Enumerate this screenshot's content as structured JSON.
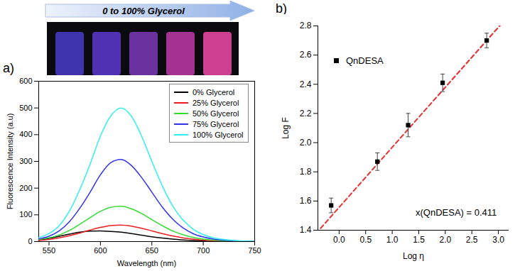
{
  "header": {
    "arrow_text": "0 to 100% Glycerol"
  },
  "chart_data": [
    {
      "type": "line",
      "panel": "a)",
      "x_label": "Wavelength (nm)",
      "y_label": "Fluorescence Intensity (a.u)",
      "x": [
        540,
        550,
        560,
        570,
        580,
        590,
        600,
        610,
        620,
        630,
        640,
        650,
        660,
        670,
        680,
        690,
        700,
        710,
        720,
        730,
        740,
        750
      ],
      "series": [
        {
          "name": "0% Glycerol",
          "color": "#000000",
          "line_style": "solid",
          "values": [
            5,
            12,
            20,
            28,
            35,
            39,
            40,
            38,
            35,
            30,
            24,
            18,
            13,
            9,
            6,
            4,
            2,
            1,
            1,
            0,
            0,
            0
          ]
        },
        {
          "name": "25% Glycerol",
          "color": "#ee1c1c",
          "line_style": "solid",
          "values": [
            4,
            8,
            14,
            22,
            32,
            43,
            53,
            60,
            62,
            58,
            50,
            40,
            30,
            21,
            14,
            9,
            5,
            3,
            2,
            1,
            0,
            0
          ]
        },
        {
          "name": "50% Glycerol",
          "color": "#33dd33",
          "line_style": "solid",
          "values": [
            8,
            14,
            25,
            42,
            65,
            90,
            113,
            128,
            132,
            123,
            105,
            82,
            60,
            40,
            26,
            16,
            9,
            5,
            3,
            2,
            1,
            0
          ]
        },
        {
          "name": "75% Glycerol",
          "color": "#3333ee",
          "line_style": "solid",
          "values": [
            10,
            20,
            40,
            75,
            125,
            185,
            250,
            295,
            307,
            285,
            240,
            185,
            130,
            85,
            52,
            30,
            17,
            9,
            5,
            3,
            2,
            1
          ]
        },
        {
          "name": "100% Glycerol",
          "color": "#33eeee",
          "line_style": "solid",
          "values": [
            15,
            30,
            60,
            115,
            195,
            290,
            395,
            470,
            500,
            470,
            395,
            300,
            210,
            135,
            82,
            47,
            26,
            14,
            8,
            4,
            2,
            1
          ]
        }
      ],
      "xlim": [
        540,
        750
      ],
      "xticks": [
        550,
        600,
        650,
        700,
        750
      ],
      "ylim": [
        0,
        600
      ],
      "yticks": [
        0,
        100,
        200,
        300,
        400,
        500,
        600
      ],
      "legend": "upper right",
      "grid": false
    },
    {
      "type": "scatter",
      "panel": "b)",
      "x_label": "Log η",
      "y_label": "Log F",
      "series": [
        {
          "name": "QnDESA",
          "color": "#000000",
          "marker": "square",
          "x": [
            -0.15,
            0.72,
            1.3,
            1.95,
            2.78
          ],
          "values": [
            1.57,
            1.87,
            2.12,
            2.41,
            2.7
          ],
          "error": [
            0.05,
            0.06,
            0.08,
            0.06,
            0.05
          ]
        }
      ],
      "fit_line": {
        "x": [
          -0.35,
          3.05
        ],
        "values": [
          1.413,
          2.811
        ],
        "color": "#e03030",
        "line_style": "dashed"
      },
      "annotation": "x(QnDESA) = 0.411",
      "xlim": [
        -0.4,
        3.2
      ],
      "xticks": [
        {
          "value": 0,
          "label": "0.0"
        },
        {
          "value": 0.5,
          "label": "0.5"
        },
        {
          "value": 1,
          "label": "1.0"
        },
        {
          "value": 1.5,
          "label": "1.5"
        },
        {
          "value": 2,
          "label": "2.0"
        },
        {
          "value": 2.5,
          "label": "2.5"
        },
        {
          "value": 3,
          "label": "3.0"
        }
      ],
      "ylim": [
        1.4,
        2.8
      ],
      "yticks": [
        1.4,
        1.6,
        1.8,
        {
          "value": 2,
          "label": "2.0"
        },
        2.2,
        2.4,
        2.6,
        2.8
      ],
      "legend": "upper left",
      "grid": false
    }
  ]
}
